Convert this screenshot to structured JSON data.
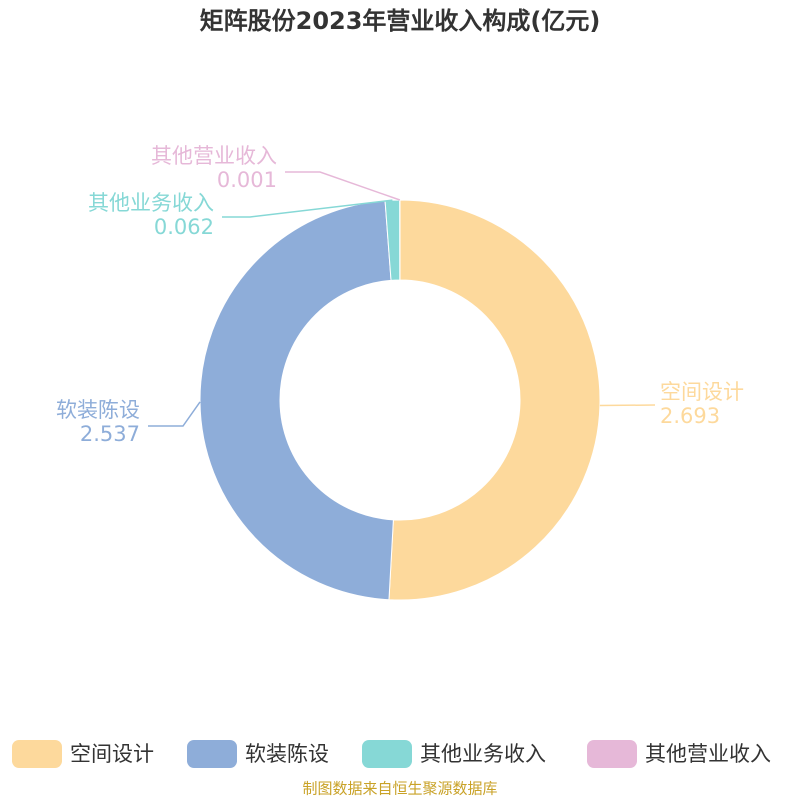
{
  "chart_data": {
    "type": "donut",
    "title": "矩阵股份2023年营业收入构成(亿元)",
    "categories": [
      "空间设计",
      "软装陈设",
      "其他业务收入",
      "其他营业收入"
    ],
    "values": [
      2.693,
      2.537,
      0.062,
      0.001
    ],
    "colors": [
      "#fdd99c",
      "#8eadd9",
      "#86d8d6",
      "#e6b8d8"
    ],
    "source": "制图数据来自恒生聚源数据库"
  }
}
